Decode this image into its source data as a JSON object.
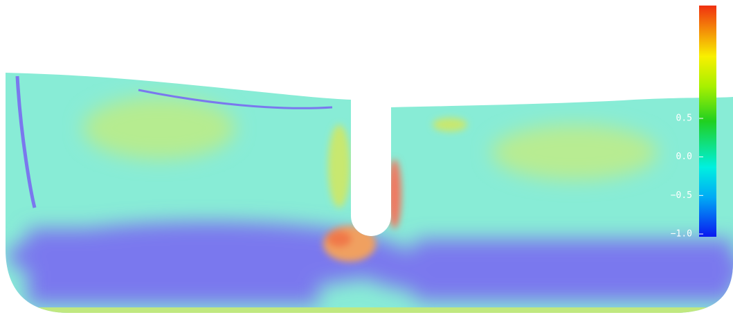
{
  "colorbar": {
    "range": [
      -1.0,
      2.0
    ],
    "ticks": [
      {
        "value": 0.5,
        "label": "0.5"
      },
      {
        "value": 0,
        "label": "0.0"
      },
      {
        "value": -0.5,
        "label": "−0.5"
      },
      {
        "value": -1,
        "label": "−1.0"
      }
    ]
  }
}
